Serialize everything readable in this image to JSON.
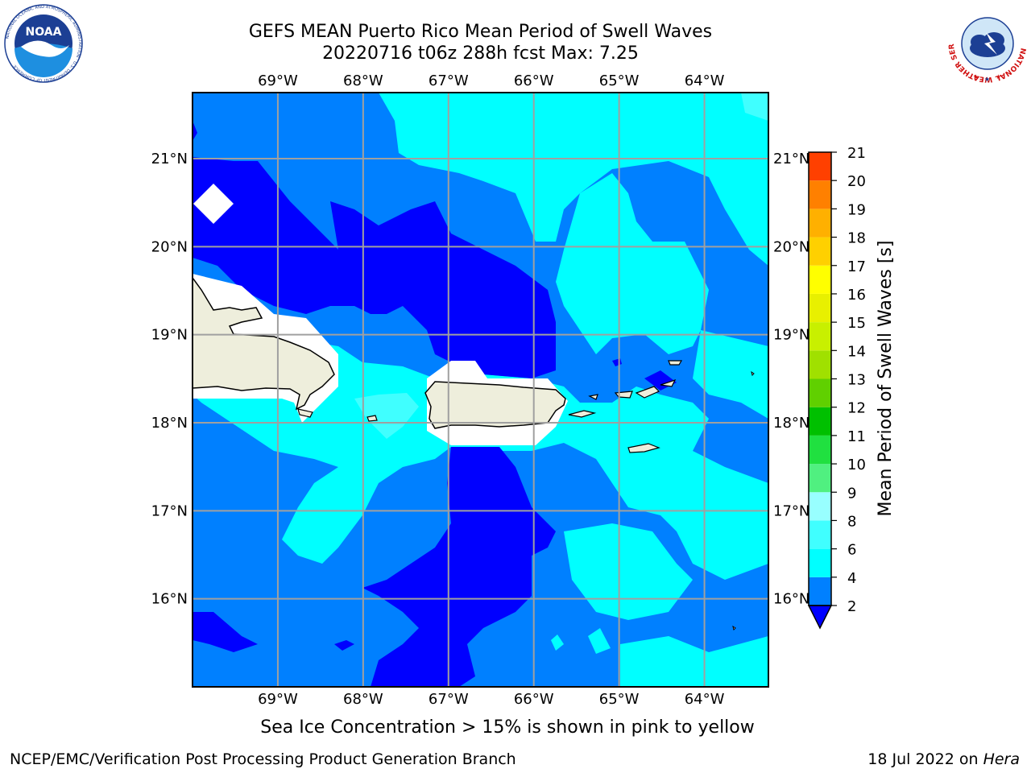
{
  "header": {
    "title_line1": "GEFS MEAN Puerto Rico Mean Period of Swell Waves",
    "title_line2": "20220716 t06z 288h fcst   Max: 7.25"
  },
  "logos": {
    "left": "noaa-logo",
    "left_text": "NOAA",
    "left_ring_text": "NATIONAL OCEANIC AND ATMOSPHERIC ADMINISTRATION · U.S. DEPARTMENT OF COMMERCE",
    "right": "national-weather-service-logo",
    "right_ring_text": "NATIONAL WEATHER SERVICE"
  },
  "map": {
    "lon_labels": [
      "69°W",
      "68°W",
      "67°W",
      "66°W",
      "65°W",
      "64°W"
    ],
    "lat_labels": [
      "21°N",
      "20°N",
      "19°N",
      "18°N",
      "17°N",
      "16°N"
    ],
    "lon_values": [
      -69,
      -68,
      -67,
      -66,
      -65,
      -64
    ],
    "lat_values": [
      21,
      20,
      19,
      18,
      17,
      16
    ],
    "lon_range": [
      -70.0,
      -63.25
    ],
    "lat_range": [
      15.0,
      21.75
    ],
    "grid": true,
    "land_color": "#eeeedc",
    "masked_color": "#ffffff"
  },
  "colorbar": {
    "label": "Mean Period of Swell Waves [s]",
    "ticks": [
      "21",
      "20",
      "19",
      "18",
      "17",
      "16",
      "15",
      "14",
      "13",
      "12",
      "11",
      "10",
      "9",
      "8",
      "6",
      "4",
      "2"
    ],
    "levels": [
      2,
      4,
      6,
      8,
      9,
      10,
      11,
      12,
      13,
      14,
      15,
      16,
      17,
      18,
      19,
      20,
      21
    ],
    "colors": [
      "#0080ff",
      "#00ffff",
      "#40ffff",
      "#98ffff",
      "#50f080",
      "#20e040",
      "#00c000",
      "#60d000",
      "#a0e000",
      "#c8f000",
      "#e8f000",
      "#ffff00",
      "#ffd000",
      "#ffb000",
      "#ff8000",
      "#ff4000",
      "#ff0000"
    ],
    "under_color": "#0000ff"
  },
  "contour_legend": {
    "below_4": "#0080ff",
    "4_to_6": "#00ffff",
    "6_to_8": "#40ffff",
    "below_2": "#0000ff"
  },
  "caption": "Sea Ice Concentration > 15% is shown in pink to yellow",
  "footer": {
    "left": "NCEP/EMC/Verification Post Processing Product Generation Branch",
    "right_date": "18 Jul 2022 on ",
    "right_host": "Hera"
  }
}
